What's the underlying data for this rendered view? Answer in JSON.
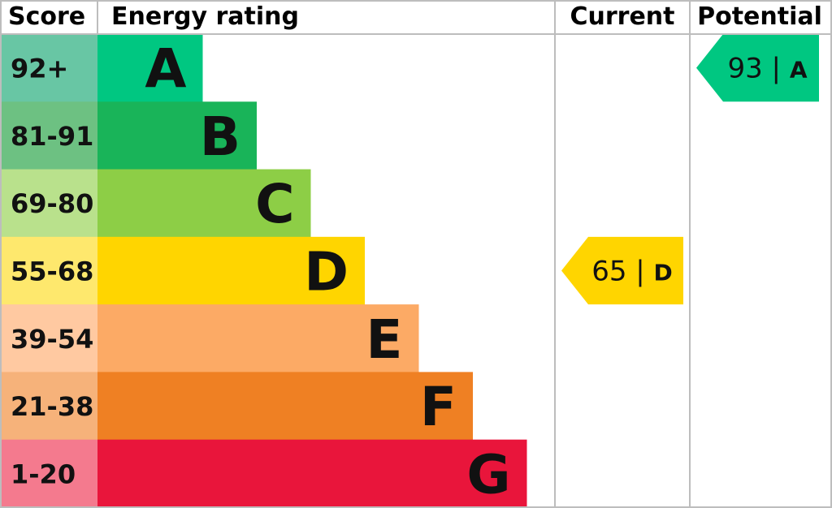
{
  "header": {
    "score_label": "Score",
    "rating_label": "Energy rating",
    "current_label": "Current",
    "potential_label": "Potential"
  },
  "chart_data": {
    "type": "bar",
    "title": "",
    "bands": [
      {
        "score_range": "92+",
        "letter": "A",
        "score_bg": "#68c6a4",
        "bar_color": "#00c781"
      },
      {
        "score_range": "81-91",
        "letter": "B",
        "score_bg": "#6dc182",
        "bar_color": "#19b459"
      },
      {
        "score_range": "69-80",
        "letter": "C",
        "score_bg": "#b9e18c",
        "bar_color": "#8dce46"
      },
      {
        "score_range": "55-68",
        "letter": "D",
        "score_bg": "#fee86d",
        "bar_color": "#ffd500"
      },
      {
        "score_range": "39-54",
        "letter": "E",
        "score_bg": "#ffc9a1",
        "bar_color": "#fcaa65"
      },
      {
        "score_range": "21-38",
        "letter": "F",
        "score_bg": "#f6b27a",
        "bar_color": "#ef8023"
      },
      {
        "score_range": "1-20",
        "letter": "G",
        "score_bg": "#f47a8e",
        "bar_color": "#e9153b"
      }
    ],
    "current": {
      "value": 65,
      "letter": "D",
      "separator": "|",
      "color": "#ffd500"
    },
    "potential": {
      "value": 93,
      "letter": "A",
      "separator": "|",
      "color": "#00c781"
    }
  }
}
